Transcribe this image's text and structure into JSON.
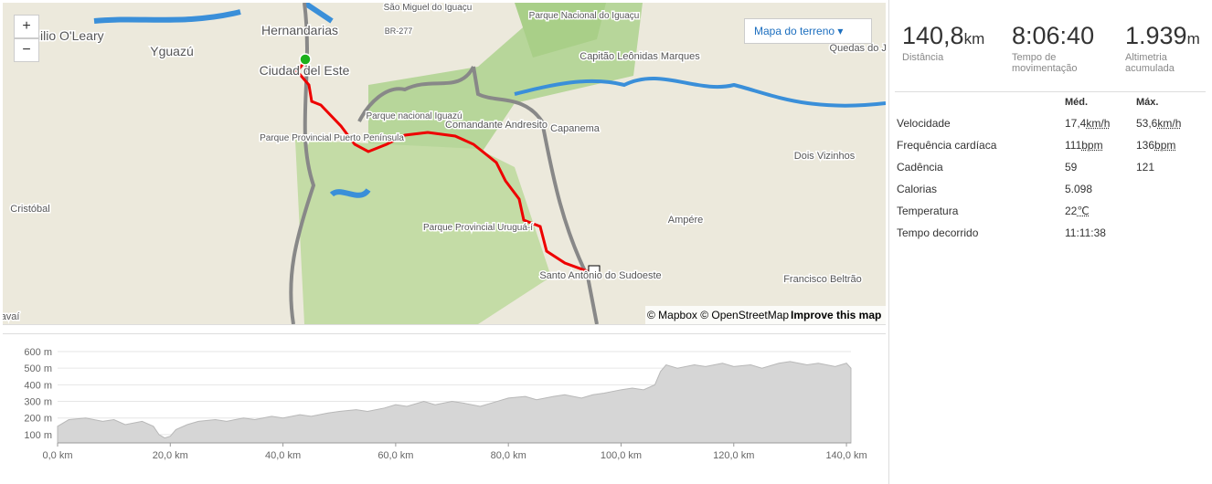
{
  "map": {
    "labels": [
      "São Miguel do Iguaçu",
      "milio O'Leary",
      "Hernandarias",
      "Yguazú",
      "Ciudad del Este",
      "BR-277",
      "Parque Nacional do Iguaçu",
      "Capitão Leônidas Marques",
      "Quedas do Jei",
      "Parque nacional Iguazú",
      "Comandante Andresito",
      "Capanema",
      "Parque Provincial Puerto Península",
      "Dois Vizinhos",
      "Cristóbal",
      "Parque Provincial Uruguá-í",
      "Ampére",
      "Santo Antônio do Sudoeste",
      "Francisco Beltrão",
      "avaí"
    ],
    "zoom_in": "+",
    "zoom_out": "−",
    "layer_button": "Mapa do terreno",
    "attribution": "© Mapbox © OpenStreetMap",
    "improve": "Improve this map"
  },
  "stats": [
    {
      "value": "140,8",
      "unit": "km",
      "label": "Distância"
    },
    {
      "value": "8:06:40",
      "label": "Tempo de movimentação"
    },
    {
      "value": "1.939",
      "unit": "m",
      "label": "Altimetria acumulada"
    }
  ],
  "table": {
    "headers": [
      "Méd.",
      "Máx."
    ],
    "rows": [
      {
        "label": "Velocidade",
        "avg": "17,4",
        "avg_unit": "km/h",
        "max": "53,6",
        "max_unit": "km/h"
      },
      {
        "label": "Frequência cardíaca",
        "avg": "111",
        "avg_unit": "bpm",
        "max": "136",
        "max_unit": "bpm"
      },
      {
        "label": "Cadência",
        "avg": "59",
        "max": "121"
      },
      {
        "label": "Calorias",
        "avg": "5.098"
      },
      {
        "label": "Temperatura",
        "avg": "22",
        "avg_unit": "℃"
      },
      {
        "label": "Tempo decorrido",
        "avg": "11:11:38"
      }
    ]
  },
  "chart_data": {
    "type": "area",
    "color": "#d6d6d6",
    "x": [
      0,
      2,
      5,
      8,
      10,
      12,
      15,
      17,
      18,
      19,
      20,
      21,
      23,
      25,
      28,
      30,
      33,
      35,
      38,
      40,
      43,
      45,
      48,
      50,
      53,
      55,
      58,
      60,
      62,
      65,
      67,
      70,
      72,
      75,
      78,
      80,
      83,
      85,
      88,
      90,
      93,
      95,
      97,
      100,
      102,
      104,
      106,
      107,
      108,
      110,
      113,
      115,
      118,
      120,
      123,
      125,
      128,
      130,
      133,
      135,
      138,
      140,
      140.8
    ],
    "values": [
      150,
      190,
      200,
      180,
      190,
      160,
      180,
      150,
      100,
      80,
      90,
      130,
      160,
      180,
      190,
      180,
      200,
      190,
      210,
      200,
      220,
      210,
      230,
      240,
      250,
      240,
      260,
      280,
      270,
      300,
      280,
      300,
      290,
      270,
      300,
      320,
      330,
      310,
      330,
      340,
      320,
      340,
      350,
      370,
      380,
      370,
      400,
      480,
      520,
      500,
      520,
      510,
      530,
      510,
      520,
      500,
      530,
      540,
      520,
      530,
      510,
      530,
      500
    ],
    "xlim": [
      0,
      140.8
    ],
    "ylim": [
      50,
      600
    ],
    "xticks": [
      {
        "value": 0,
        "label": "0,0 km"
      },
      {
        "value": 20,
        "label": "20,0 km"
      },
      {
        "value": 40,
        "label": "40,0 km"
      },
      {
        "value": 60,
        "label": "60,0 km"
      },
      {
        "value": 80,
        "label": "80,0 km"
      },
      {
        "value": 100,
        "label": "100,0 km"
      },
      {
        "value": 120,
        "label": "120,0 km"
      },
      {
        "value": 140,
        "label": "140,0 km"
      }
    ],
    "yticks": [
      {
        "value": 100,
        "label": "100 m"
      },
      {
        "value": 200,
        "label": "200 m"
      },
      {
        "value": 300,
        "label": "300 m"
      },
      {
        "value": 400,
        "label": "400 m"
      },
      {
        "value": 500,
        "label": "500 m"
      },
      {
        "value": 600,
        "label": "600 m"
      }
    ],
    "grid": true
  }
}
